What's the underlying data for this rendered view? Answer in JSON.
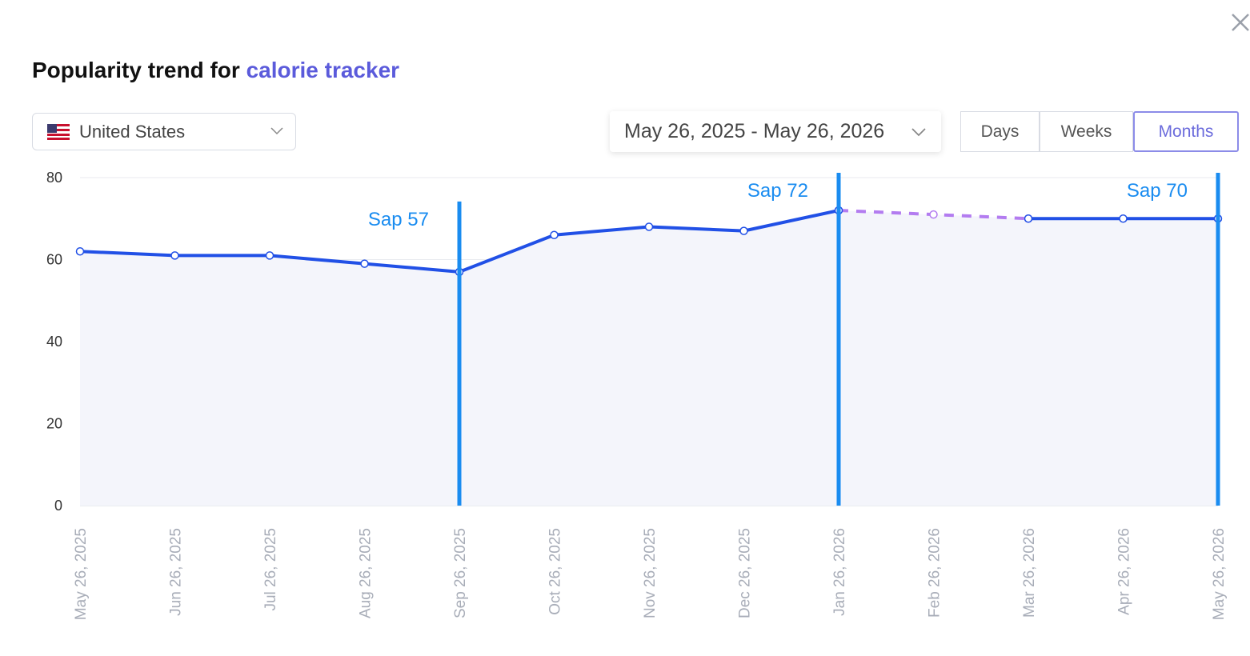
{
  "header": {
    "title": "Popularity trend for",
    "keyword": "calorie tracker"
  },
  "controls": {
    "country": "United States",
    "date_range": "May 26, 2025 - May 26, 2026",
    "granularity": [
      {
        "label": "Days"
      },
      {
        "label": "Weeks"
      },
      {
        "label": "Months",
        "selected": true
      }
    ]
  },
  "chart_data": {
    "type": "line",
    "categories": [
      "May 26, 2025",
      "Jun 26, 2025",
      "Jul 26, 2025",
      "Aug 26, 2025",
      "Sep 26, 2025",
      "Oct 26, 2025",
      "Nov 26, 2025",
      "Dec 26, 2025",
      "Jan 26, 2026",
      "Feb 26, 2026",
      "Mar 26, 2026",
      "Apr 26, 2026",
      "May 26, 2026"
    ],
    "series": [
      {
        "color": "#b37cf0",
        "dashed": true,
        "values": [
          null,
          null,
          null,
          null,
          null,
          null,
          null,
          null,
          72,
          71,
          70,
          null,
          null
        ]
      },
      {
        "color": "#2150e6",
        "area": true,
        "values": [
          62,
          61,
          61,
          59,
          57,
          66,
          68,
          67,
          72,
          null,
          70,
          70,
          70
        ]
      }
    ],
    "annotations": [
      {
        "text": "Sap 57",
        "at": "Sep 26, 2025"
      },
      {
        "text": "Sap 72",
        "at": "Jan 26, 2026"
      },
      {
        "text": "Sap 70",
        "at": "May 26, 2026"
      }
    ],
    "annotation_color": "#1a8cf0",
    "ylim": [
      0,
      80
    ],
    "yticks": [
      0,
      20,
      40,
      60,
      80
    ],
    "grid": true
  }
}
